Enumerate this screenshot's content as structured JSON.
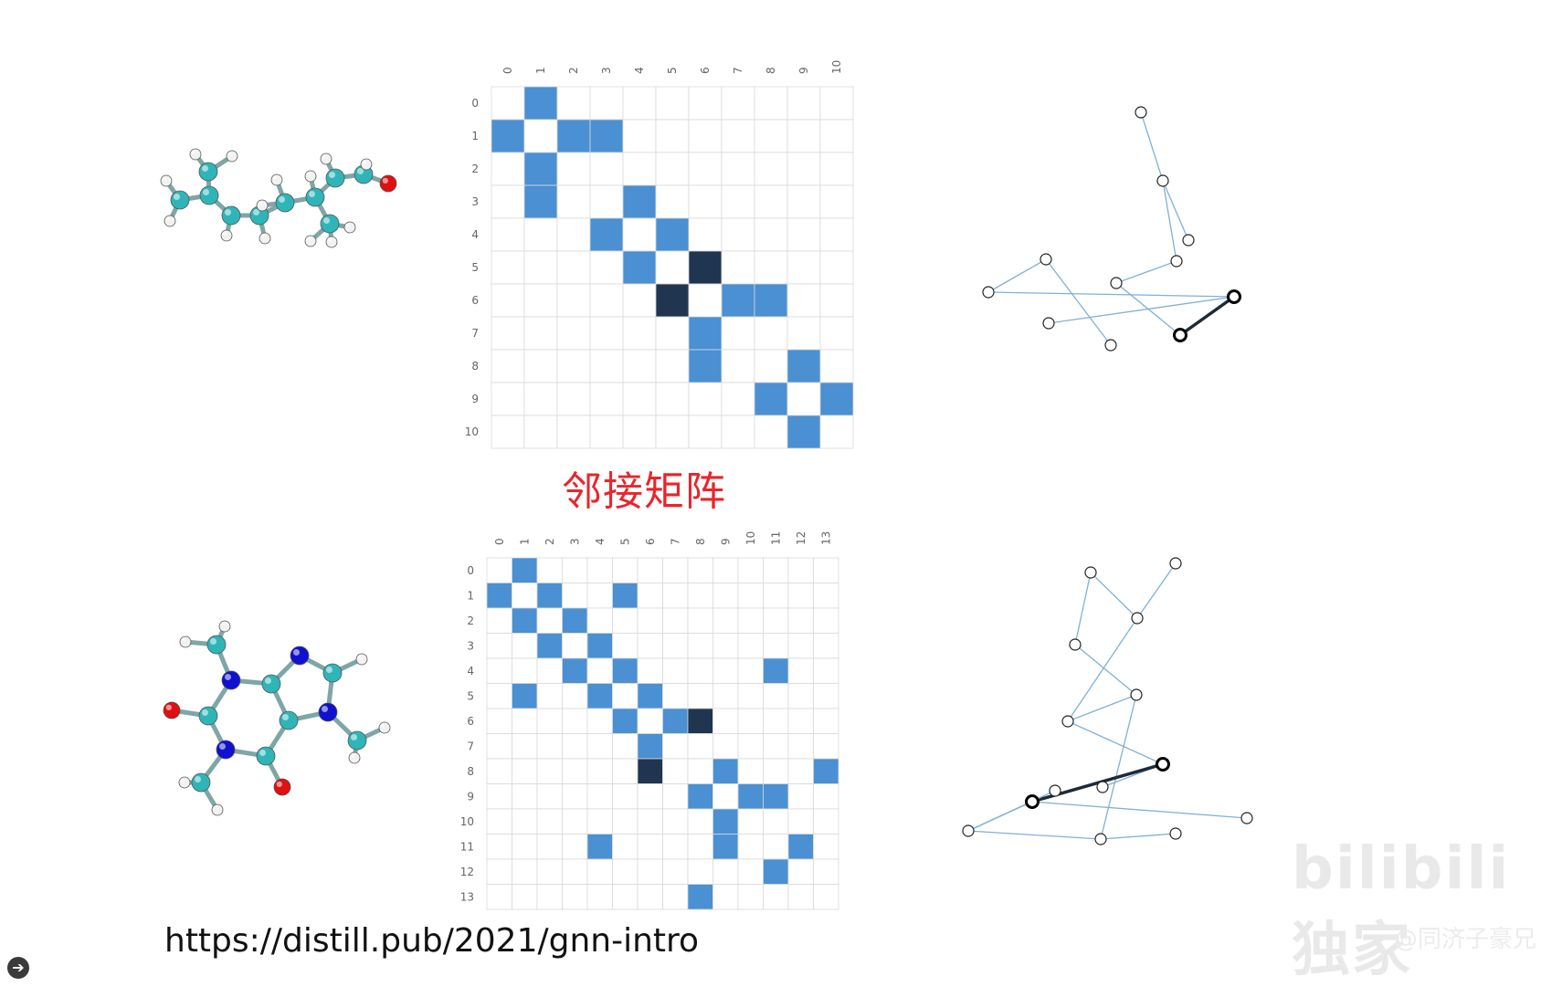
{
  "slide": {
    "caption": "邻接矩阵",
    "url": "https://distill.pub/2021/gnn-intro",
    "watermark_logo": "bilibili 独家",
    "watermark_author": "@同济子豪兄",
    "nav_icon": "arrow-right-circle-icon"
  },
  "colors": {
    "edge_cell": "#4a90d2",
    "highlight_cell": "#1f3550",
    "grid_line": "#d9d9d9",
    "graph_edge": "#7fb0d8",
    "highlight_edge": "#1e2a38",
    "atom_carbon": "#2fb5b8",
    "atom_hydrogen": "#f2f2f2",
    "atom_oxygen": "#e01010",
    "atom_nitrogen": "#1010d0",
    "caption": "#e8262b"
  },
  "matrices": [
    {
      "name": "matrix-top",
      "labels": [
        "0",
        "1",
        "2",
        "3",
        "4",
        "5",
        "6",
        "7",
        "8",
        "9",
        "10"
      ],
      "edges": [
        [
          0,
          1
        ],
        [
          1,
          2
        ],
        [
          1,
          3
        ],
        [
          3,
          4
        ],
        [
          4,
          5
        ],
        [
          5,
          6
        ],
        [
          6,
          7
        ],
        [
          6,
          8
        ],
        [
          8,
          9
        ],
        [
          9,
          10
        ]
      ],
      "highlight": [
        [
          5,
          6
        ]
      ]
    },
    {
      "name": "matrix-bottom",
      "labels": [
        "0",
        "1",
        "2",
        "3",
        "4",
        "5",
        "6",
        "7",
        "8",
        "9",
        "10",
        "11",
        "12",
        "13"
      ],
      "edges": [
        [
          0,
          1
        ],
        [
          1,
          2
        ],
        [
          1,
          5
        ],
        [
          2,
          3
        ],
        [
          3,
          4
        ],
        [
          4,
          5
        ],
        [
          4,
          11
        ],
        [
          5,
          6
        ],
        [
          6,
          7
        ],
        [
          6,
          8
        ],
        [
          8,
          9
        ],
        [
          8,
          13
        ],
        [
          9,
          10
        ],
        [
          9,
          11
        ],
        [
          11,
          12
        ]
      ],
      "highlight": [
        [
          6,
          8
        ]
      ]
    }
  ],
  "graphs": [
    {
      "name": "graph-top",
      "node_count": 11,
      "edges": [
        [
          0,
          1
        ],
        [
          1,
          2
        ],
        [
          1,
          3
        ],
        [
          3,
          4
        ],
        [
          4,
          5
        ],
        [
          5,
          6
        ],
        [
          6,
          7
        ],
        [
          6,
          8
        ],
        [
          8,
          9
        ],
        [
          9,
          10
        ]
      ],
      "highlight": [
        [
          5,
          6
        ]
      ]
    },
    {
      "name": "graph-bottom",
      "node_count": 14,
      "edges": [
        [
          0,
          1
        ],
        [
          1,
          2
        ],
        [
          1,
          5
        ],
        [
          2,
          3
        ],
        [
          3,
          4
        ],
        [
          4,
          5
        ],
        [
          4,
          11
        ],
        [
          5,
          6
        ],
        [
          6,
          7
        ],
        [
          6,
          8
        ],
        [
          8,
          9
        ],
        [
          8,
          13
        ],
        [
          9,
          10
        ],
        [
          9,
          11
        ],
        [
          11,
          12
        ]
      ],
      "highlight": [
        [
          6,
          8
        ]
      ]
    }
  ],
  "molecules": [
    {
      "name": "molecule-top",
      "description_hidden": true
    },
    {
      "name": "molecule-bottom",
      "description_hidden": true
    }
  ]
}
